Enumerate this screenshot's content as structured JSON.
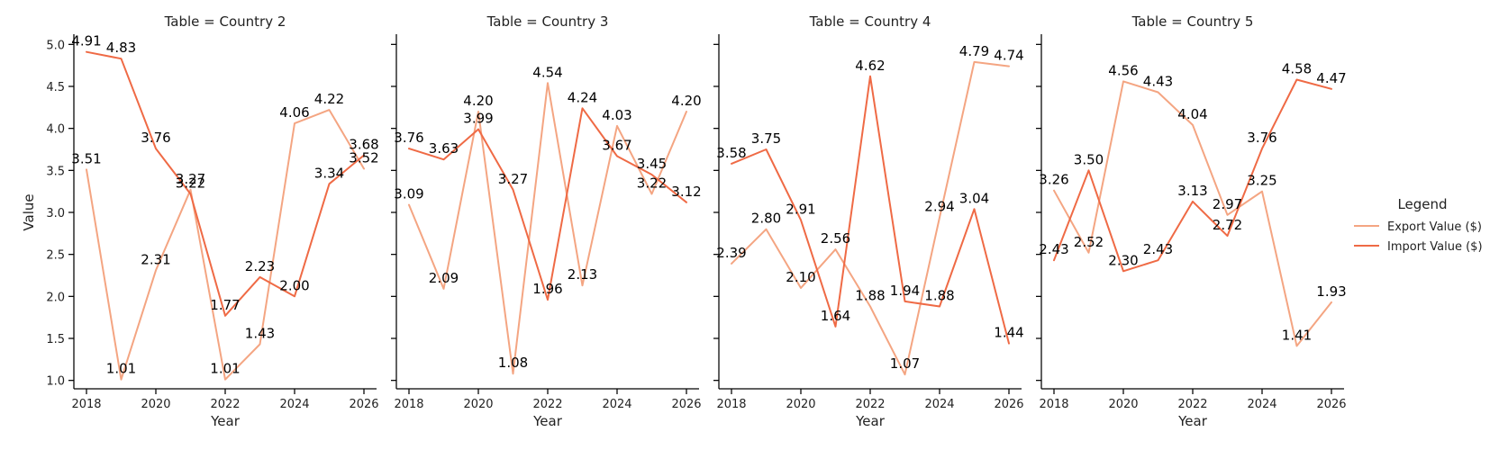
{
  "chart_data": {
    "type": "line",
    "facet_label": "Table",
    "xlabel": "Year",
    "ylabel": "Value",
    "xlim": [
      2017.75,
      2026.25
    ],
    "ylim": [
      0.9,
      5.1
    ],
    "x_ticks": [
      2018,
      2020,
      2022,
      2024,
      2026
    ],
    "y_ticks": [
      1.0,
      1.5,
      2.0,
      2.5,
      3.0,
      3.5,
      4.0,
      4.5,
      5.0
    ],
    "x": [
      2018,
      2019,
      2020,
      2021,
      2022,
      2023,
      2024,
      2025,
      2026
    ],
    "legend": {
      "title": "Legend",
      "placement": "right",
      "entries": [
        {
          "name": "Export Value ($)",
          "color": "#F4A582"
        },
        {
          "name": "Import Value ($)",
          "color": "#EF6A45"
        }
      ]
    },
    "panels": [
      {
        "title": "Table = Country 2",
        "series": [
          {
            "name": "Export Value ($)",
            "color": "#F4A582",
            "values": [
              3.51,
              1.01,
              2.31,
              3.27,
              1.01,
              1.43,
              4.06,
              4.22,
              3.52
            ]
          },
          {
            "name": "Import Value ($)",
            "color": "#EF6A45",
            "values": [
              4.91,
              4.83,
              3.76,
              3.22,
              1.77,
              2.23,
              2.0,
              3.34,
              3.68
            ]
          }
        ]
      },
      {
        "title": "Table = Country 3",
        "series": [
          {
            "name": "Export Value ($)",
            "color": "#F4A582",
            "values": [
              3.09,
              2.09,
              4.2,
              1.08,
              4.54,
              2.13,
              4.03,
              3.22,
              4.2
            ]
          },
          {
            "name": "Import Value ($)",
            "color": "#EF6A45",
            "values": [
              3.76,
              3.63,
              3.99,
              3.27,
              1.96,
              4.24,
              3.67,
              3.45,
              3.12
            ]
          }
        ]
      },
      {
        "title": "Table = Country 4",
        "series": [
          {
            "name": "Export Value ($)",
            "color": "#F4A582",
            "values": [
              2.39,
              2.8,
              2.1,
              2.56,
              1.88,
              1.07,
              2.94,
              4.79,
              4.74
            ]
          },
          {
            "name": "Import Value ($)",
            "color": "#EF6A45",
            "values": [
              3.58,
              3.75,
              2.91,
              1.64,
              4.62,
              1.94,
              1.88,
              3.04,
              1.44
            ]
          }
        ]
      },
      {
        "title": "Table = Country 5",
        "series": [
          {
            "name": "Export Value ($)",
            "color": "#F4A582",
            "values": [
              3.26,
              2.52,
              4.56,
              4.43,
              4.04,
              2.97,
              3.25,
              1.41,
              1.93
            ]
          },
          {
            "name": "Import Value ($)",
            "color": "#EF6A45",
            "values": [
              2.43,
              3.5,
              2.3,
              2.43,
              3.13,
              2.72,
              3.76,
              4.58,
              4.47
            ]
          }
        ]
      }
    ]
  }
}
